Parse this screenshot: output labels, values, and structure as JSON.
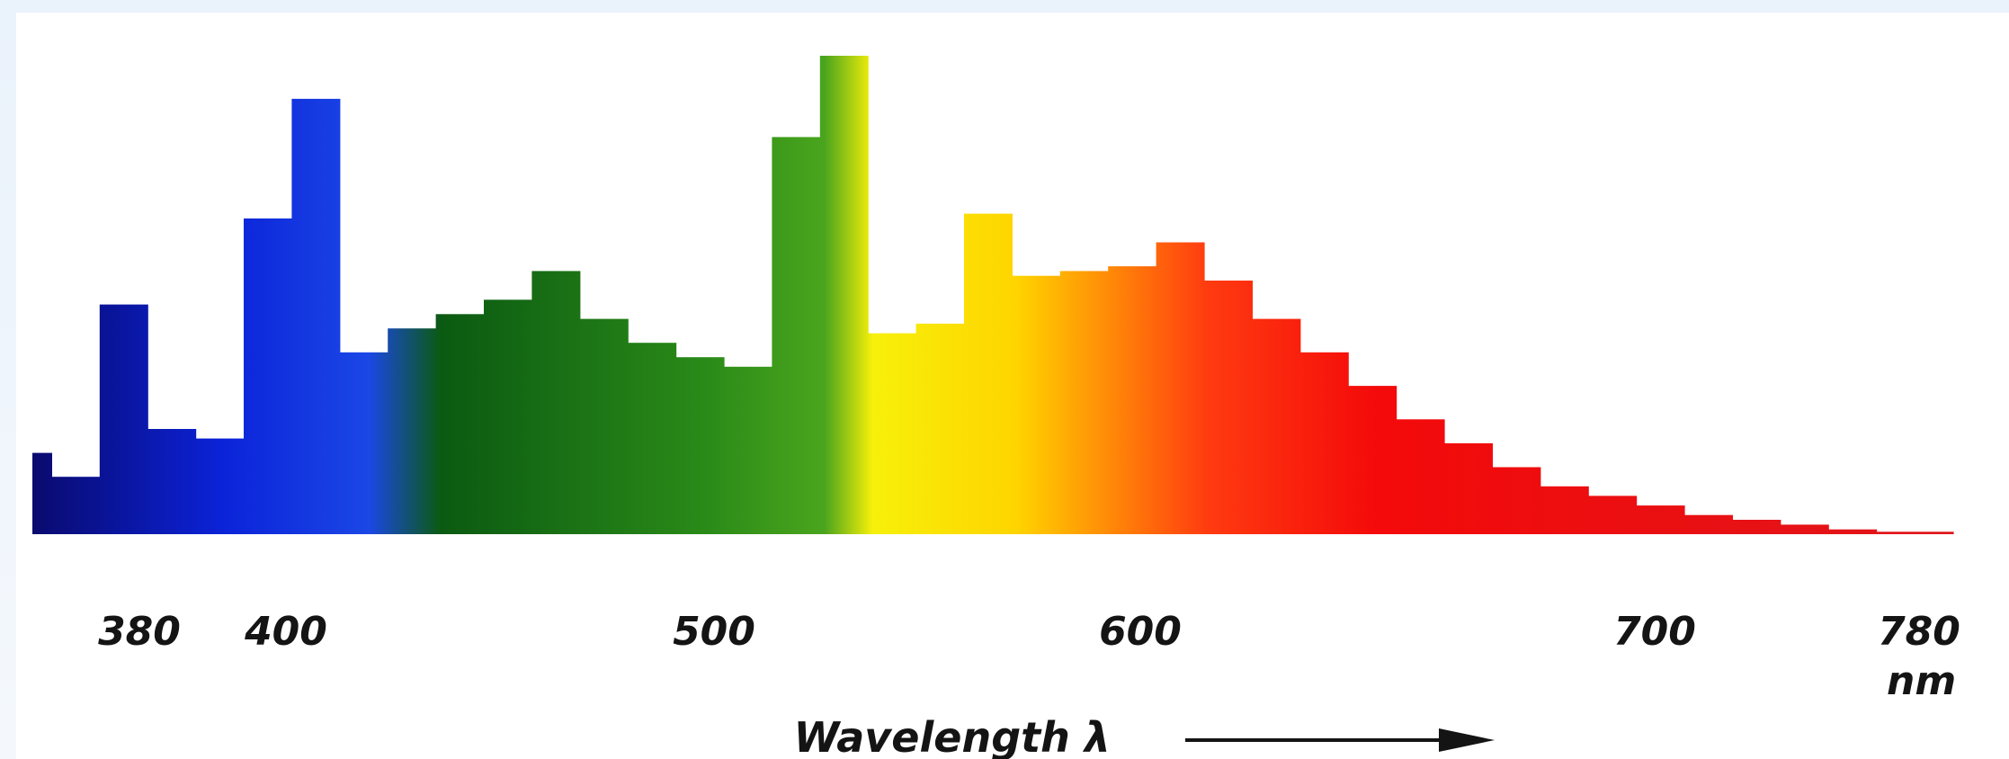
{
  "chart_data": {
    "type": "bar",
    "title": "",
    "xlabel": "Wavelength λ",
    "unit": "nm",
    "ylabel": "",
    "xlim": [
      380,
      780
    ],
    "ylim": [
      0,
      100
    ],
    "grid": false,
    "legend": "none",
    "x_ticks": [
      "380",
      "400",
      "500",
      "600",
      "700",
      "780"
    ],
    "bins": [
      {
        "x0": 380,
        "x1": 384,
        "value": 17
      },
      {
        "x0": 384,
        "x1": 394,
        "value": 12
      },
      {
        "x0": 394,
        "x1": 404,
        "value": 48
      },
      {
        "x0": 404,
        "x1": 414,
        "value": 22
      },
      {
        "x0": 414,
        "x1": 424,
        "value": 20
      },
      {
        "x0": 424,
        "x1": 434,
        "value": 66
      },
      {
        "x0": 434,
        "x1": 444,
        "value": 91
      },
      {
        "x0": 444,
        "x1": 454,
        "value": 38
      },
      {
        "x0": 454,
        "x1": 464,
        "value": 43
      },
      {
        "x0": 464,
        "x1": 474,
        "value": 46
      },
      {
        "x0": 474,
        "x1": 484,
        "value": 49
      },
      {
        "x0": 484,
        "x1": 494,
        "value": 55
      },
      {
        "x0": 494,
        "x1": 504,
        "value": 45
      },
      {
        "x0": 504,
        "x1": 514,
        "value": 40
      },
      {
        "x0": 514,
        "x1": 524,
        "value": 37
      },
      {
        "x0": 524,
        "x1": 534,
        "value": 35
      },
      {
        "x0": 534,
        "x1": 544,
        "value": 83
      },
      {
        "x0": 544,
        "x1": 554,
        "value": 100
      },
      {
        "x0": 554,
        "x1": 564,
        "value": 42
      },
      {
        "x0": 564,
        "x1": 574,
        "value": 44
      },
      {
        "x0": 574,
        "x1": 584,
        "value": 67
      },
      {
        "x0": 584,
        "x1": 594,
        "value": 54
      },
      {
        "x0": 594,
        "x1": 604,
        "value": 55
      },
      {
        "x0": 604,
        "x1": 614,
        "value": 56
      },
      {
        "x0": 614,
        "x1": 624,
        "value": 61
      },
      {
        "x0": 624,
        "x1": 634,
        "value": 53
      },
      {
        "x0": 634,
        "x1": 644,
        "value": 45
      },
      {
        "x0": 644,
        "x1": 654,
        "value": 38
      },
      {
        "x0": 654,
        "x1": 664,
        "value": 31
      },
      {
        "x0": 664,
        "x1": 674,
        "value": 24
      },
      {
        "x0": 674,
        "x1": 684,
        "value": 19
      },
      {
        "x0": 684,
        "x1": 694,
        "value": 14
      },
      {
        "x0": 694,
        "x1": 704,
        "value": 10
      },
      {
        "x0": 704,
        "x1": 714,
        "value": 8
      },
      {
        "x0": 714,
        "x1": 724,
        "value": 6
      },
      {
        "x0": 724,
        "x1": 734,
        "value": 4
      },
      {
        "x0": 734,
        "x1": 744,
        "value": 3
      },
      {
        "x0": 744,
        "x1": 754,
        "value": 2
      },
      {
        "x0": 754,
        "x1": 764,
        "value": 1
      },
      {
        "x0": 764,
        "x1": 780,
        "value": 0.5
      }
    ],
    "spectrum_colors": [
      {
        "at": 380,
        "color": "#0a0a6e"
      },
      {
        "at": 420,
        "color": "#0b23d9"
      },
      {
        "at": 450,
        "color": "#1b47e6"
      },
      {
        "at": 465,
        "color": "#0b5a12"
      },
      {
        "at": 520,
        "color": "#2a8a18"
      },
      {
        "at": 545,
        "color": "#4aa51d"
      },
      {
        "at": 555,
        "color": "#f7f00a"
      },
      {
        "at": 585,
        "color": "#ffd400"
      },
      {
        "at": 625,
        "color": "#ff3a10"
      },
      {
        "at": 660,
        "color": "#f40a0a"
      },
      {
        "at": 780,
        "color": "#e0151a"
      }
    ]
  }
}
